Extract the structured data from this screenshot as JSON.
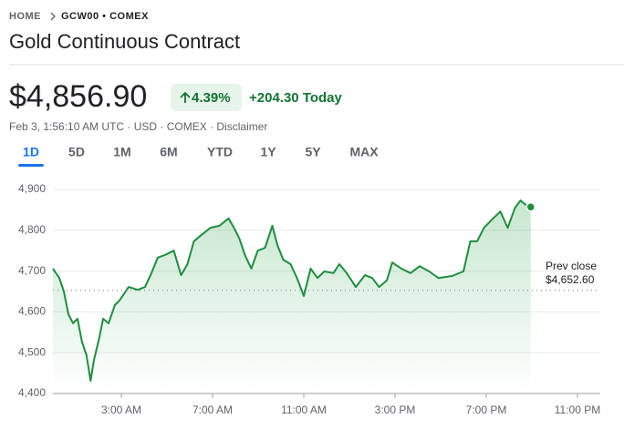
{
  "header": {
    "breadcrumb_home": "HOME",
    "breadcrumb_ticker": "GCW00 • COMEX",
    "title": "Gold Continuous Contract"
  },
  "quote": {
    "price": "$4,856.90",
    "change_pct": "4.39%",
    "change_abs": "+204.30 Today",
    "meta": "Feb 3, 1:56:10 AM UTC · USD · COMEX · Disclaimer"
  },
  "ranges": [
    "1D",
    "5D",
    "1M",
    "6M",
    "YTD",
    "1Y",
    "5Y",
    "MAX"
  ],
  "chart_data": {
    "type": "line",
    "x": [
      0,
      0.28,
      0.48,
      0.68,
      0.88,
      1.08,
      1.27,
      1.47,
      1.65,
      1.8,
      2.04,
      2.2,
      2.44,
      2.72,
      2.92,
      3.32,
      3.72,
      4.04,
      4.32,
      4.6,
      4.9,
      5.3,
      5.62,
      5.9,
      6.18,
      6.5,
      6.9,
      7.3,
      7.7,
      7.94,
      8.18,
      8.42,
      8.7,
      8.98,
      9.3,
      9.62,
      9.86,
      10.1,
      10.42,
      10.7,
      11.0,
      11.3,
      11.6,
      11.9,
      12.3,
      12.56,
      12.88,
      13.28,
      13.68,
      14.0,
      14.3,
      14.64,
      14.88,
      15.28,
      15.68,
      16.08,
      16.5,
      16.9,
      17.5,
      18.0,
      18.3,
      18.6,
      18.9,
      19.3,
      19.62,
      19.94,
      20.26,
      20.5,
      20.74,
      20.95
    ],
    "series": [
      {
        "name": "GCW00",
        "color": "#1e8e3e",
        "values": [
          4706,
          4683,
          4650,
          4594,
          4572,
          4583,
          4527,
          4494,
          4431,
          4482,
          4538,
          4583,
          4572,
          4617,
          4628,
          4661,
          4654,
          4661,
          4695,
          4733,
          4739,
          4750,
          4690,
          4717,
          4773,
          4788,
          4806,
          4811,
          4829,
          4806,
          4779,
          4739,
          4706,
          4750,
          4757,
          4811,
          4761,
          4728,
          4717,
          4683,
          4639,
          4706,
          4683,
          4699,
          4695,
          4717,
          4695,
          4661,
          4690,
          4683,
          4661,
          4677,
          4721,
          4706,
          4695,
          4712,
          4699,
          4683,
          4688,
          4699,
          4773,
          4773,
          4806,
          4829,
          4846,
          4806,
          4855,
          4873,
          4862,
          4856.9
        ]
      }
    ],
    "xlim": [
      0,
      24
    ],
    "xticks": [
      {
        "value": 3,
        "label": "3:00 AM"
      },
      {
        "value": 7,
        "label": "7:00 AM"
      },
      {
        "value": 11,
        "label": "11:00 AM"
      },
      {
        "value": 15,
        "label": "3:00 PM"
      },
      {
        "value": 19,
        "label": "7:00 PM"
      },
      {
        "value": 23,
        "label": "11:00 PM"
      }
    ],
    "ylim": [
      4400,
      4900
    ],
    "yticks": [
      {
        "value": 4400,
        "label": "4,400"
      },
      {
        "value": 4500,
        "label": "4,500"
      },
      {
        "value": 4600,
        "label": "4,600"
      },
      {
        "value": 4700,
        "label": "4,700"
      },
      {
        "value": 4800,
        "label": "4,800"
      },
      {
        "value": 4900,
        "label": "4,900"
      }
    ],
    "grid": true,
    "prev_close_title": "Prev close",
    "prev_close": {
      "value": 4652.6,
      "label": "$4,652.60"
    }
  }
}
